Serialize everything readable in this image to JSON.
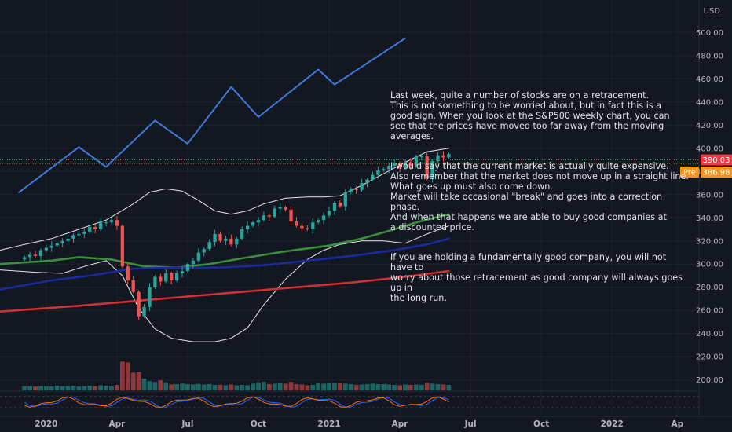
{
  "currency_label": "USD",
  "commentary": {
    "paragraphs": [
      "Last week, quite a number of stocks are on a retracement.\nThis is not something to be worried about, but in fact this is a\ngood sign. When you look at the S&P500 weekly chart, you can\nsee that the prices have moved too far away from the moving averages.",
      "I would say that the current market is actually quite expensive.\nAlso remember that the market does not move up in a straight line.\nWhat goes up must also come down.\nMarket will take occasional \"break\" and goes into a correction phase.\nAnd when that happens we are able to buy good companies at\na discounted price.",
      "If you are holding a fundamentally good company, you will not have to\nworry about those retracement as good company will always goes up in\nthe long run."
    ]
  },
  "price_tags": {
    "last": "390.03",
    "pre_label": "Pre",
    "pre": "386.98"
  },
  "colors": {
    "background": "#131722",
    "up_candle": "#26a69a",
    "down_candle": "#ef5350",
    "ma_short": "#3a8f3a",
    "ma_mid": "#1a2a9e",
    "ma_long": "#d0302f",
    "bollinger": "#e6e6e6",
    "drawing": "#3c7ad8",
    "last_tag": "#f23645",
    "pre_tag": "#f7931a"
  },
  "chart_data": {
    "type": "candlestick",
    "title": "",
    "y_ticks": [
      200,
      220,
      240,
      260,
      280,
      300,
      320,
      340,
      360,
      380,
      400,
      420,
      440,
      460,
      480,
      500
    ],
    "y_range": [
      191,
      528
    ],
    "time_ticks": [
      {
        "label": "2020",
        "week": 4
      },
      {
        "label": "Apr",
        "week": 17
      },
      {
        "label": "Jul",
        "week": 30
      },
      {
        "label": "Oct",
        "week": 43
      },
      {
        "label": "2021",
        "week": 56
      },
      {
        "label": "Apr",
        "week": 69
      },
      {
        "label": "Jul",
        "week": 82
      },
      {
        "label": "Oct",
        "week": 95
      },
      {
        "label": "2022",
        "week": 108
      },
      {
        "label": "Ap",
        "week": 120
      }
    ],
    "week_range": [
      -4.5,
      124
    ],
    "close": [
      306,
      308,
      307,
      312,
      314,
      316,
      318,
      320,
      322,
      325,
      326,
      328,
      332,
      330,
      336,
      336,
      338,
      333,
      298,
      286,
      276,
      255,
      263,
      280,
      289,
      285,
      292,
      286,
      292,
      294,
      300,
      303,
      310,
      313,
      319,
      326,
      320,
      322,
      317,
      322,
      330,
      333,
      336,
      338,
      342,
      341,
      348,
      349,
      347,
      337,
      333,
      331,
      330,
      336,
      338,
      342,
      346,
      353,
      350,
      362,
      365,
      364,
      370,
      373,
      377,
      381,
      382,
      385,
      387,
      383,
      388,
      385,
      393,
      393,
      374,
      389,
      394,
      392,
      395
    ],
    "volume_shares_mn": [
      10,
      10,
      9,
      10,
      10,
      9,
      11,
      10,
      10,
      11,
      9,
      10,
      11,
      10,
      12,
      11,
      10,
      13,
      68,
      66,
      42,
      44,
      28,
      22,
      20,
      24,
      19,
      14,
      15,
      16,
      15,
      14,
      15,
      14,
      15,
      13,
      13,
      12,
      14,
      12,
      13,
      12,
      16,
      19,
      20,
      15,
      16,
      17,
      16,
      20,
      15,
      14,
      12,
      13,
      17,
      16,
      17,
      18,
      17,
      16,
      15,
      13,
      14,
      15,
      16,
      15,
      15,
      14,
      13,
      12,
      14,
      13,
      14,
      13,
      18,
      16,
      15,
      14,
      13
    ],
    "moving_averages": [
      {
        "name": "",
        "color": "#3a8f3a",
        "points": [
          [
            -4.5,
            300
          ],
          [
            5,
            303
          ],
          [
            10,
            306
          ],
          [
            16,
            304
          ],
          [
            22,
            298
          ],
          [
            28,
            297
          ],
          [
            34,
            300
          ],
          [
            40,
            305
          ],
          [
            48,
            311
          ],
          [
            56,
            316
          ],
          [
            62,
            322
          ],
          [
            68,
            330
          ],
          [
            72,
            336
          ],
          [
            78,
            343
          ]
        ]
      },
      {
        "name": "",
        "color": "#1a2a9e",
        "points": [
          [
            -4.5,
            278
          ],
          [
            5,
            286
          ],
          [
            12,
            290
          ],
          [
            20,
            296
          ],
          [
            28,
            297
          ],
          [
            36,
            297
          ],
          [
            44,
            299
          ],
          [
            52,
            303
          ],
          [
            60,
            307
          ],
          [
            68,
            312
          ],
          [
            74,
            317
          ],
          [
            78,
            322
          ]
        ]
      },
      {
        "name": "",
        "color": "#d0302f",
        "points": [
          [
            -4.5,
            259
          ],
          [
            10,
            264
          ],
          [
            20,
            268
          ],
          [
            30,
            272
          ],
          [
            40,
            276
          ],
          [
            50,
            280
          ],
          [
            60,
            284
          ],
          [
            70,
            289
          ],
          [
            78,
            294
          ]
        ]
      }
    ],
    "bollinger_upper": [
      [
        -4.5,
        312
      ],
      [
        0,
        317
      ],
      [
        5,
        322
      ],
      [
        10,
        330
      ],
      [
        15,
        338
      ],
      [
        20,
        352
      ],
      [
        23,
        362
      ],
      [
        26,
        365
      ],
      [
        29,
        363
      ],
      [
        32,
        355
      ],
      [
        35,
        346
      ],
      [
        38,
        343
      ],
      [
        41,
        346
      ],
      [
        44,
        352
      ],
      [
        48,
        357
      ],
      [
        52,
        358
      ],
      [
        55,
        358
      ],
      [
        58,
        359
      ],
      [
        62,
        368
      ],
      [
        66,
        378
      ],
      [
        70,
        388
      ],
      [
        74,
        397
      ],
      [
        78,
        400
      ]
    ],
    "bollinger_lower": [
      [
        -4.5,
        295
      ],
      [
        2,
        293
      ],
      [
        7,
        292
      ],
      [
        11,
        298
      ],
      [
        15,
        303
      ],
      [
        18,
        290
      ],
      [
        21,
        262
      ],
      [
        24,
        244
      ],
      [
        27,
        236
      ],
      [
        31,
        233
      ],
      [
        35,
        233
      ],
      [
        38,
        236
      ],
      [
        41,
        245
      ],
      [
        44,
        265
      ],
      [
        48,
        287
      ],
      [
        52,
        304
      ],
      [
        55,
        312
      ],
      [
        58,
        317
      ],
      [
        62,
        320
      ],
      [
        66,
        320
      ],
      [
        70,
        318
      ],
      [
        74,
        326
      ],
      [
        78,
        333
      ]
    ],
    "oscillator_note": "two oscillating lines (blue, red) near zero"
  },
  "drawing_path": [
    [
      -1,
      362
    ],
    [
      10,
      401
    ],
    [
      15,
      384
    ],
    [
      24,
      424
    ],
    [
      30,
      404
    ],
    [
      38,
      453
    ],
    [
      43,
      427
    ],
    [
      54,
      468
    ],
    [
      57,
      455
    ],
    [
      70,
      495
    ]
  ]
}
